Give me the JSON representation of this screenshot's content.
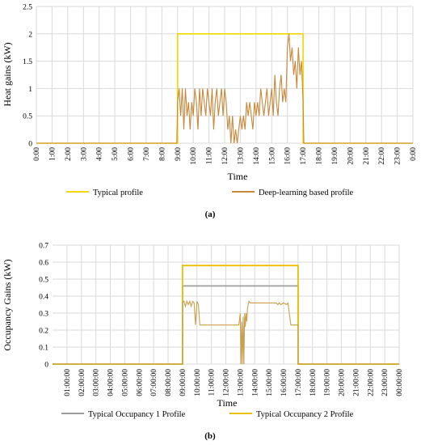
{
  "chart_data": [
    {
      "type": "line",
      "panel_label": "(a)",
      "xlabel": "Time",
      "ylabel": "Heat gains (kW)",
      "ylim": [
        0,
        2.5
      ],
      "yticks": [
        "0",
        "0.5",
        "1",
        "1.5",
        "2",
        "2.5"
      ],
      "xticks": [
        "0:00",
        "1:00",
        "2:00",
        "3:00",
        "4:00",
        "5:00",
        "6:00",
        "7:00",
        "8:00",
        "9:00",
        "10:00",
        "11:00",
        "12:00",
        "13:00",
        "14:00",
        "15:00",
        "16:00",
        "17:00",
        "18:00",
        "19:00",
        "20:00",
        "21:00",
        "22:00",
        "23:00",
        "0:00"
      ],
      "grid": true,
      "legend_position": "bottom",
      "series": [
        {
          "name": "Typical profile",
          "color": "#f2d600",
          "x": [
            0,
            9,
            9,
            17,
            17,
            24
          ],
          "y": [
            0,
            0,
            2,
            2,
            0,
            0
          ]
        },
        {
          "name": "Deep-learning based profile",
          "color": "#c8873a",
          "x": [
            0,
            8.95,
            9.0,
            9.1,
            9.2,
            9.3,
            9.4,
            9.5,
            9.6,
            9.7,
            9.8,
            9.9,
            10.0,
            10.1,
            10.2,
            10.3,
            10.4,
            10.5,
            10.6,
            10.7,
            10.8,
            10.9,
            11.0,
            11.1,
            11.2,
            11.3,
            11.4,
            11.5,
            11.6,
            11.7,
            11.8,
            11.9,
            12.0,
            12.1,
            12.2,
            12.3,
            12.4,
            12.5,
            12.6,
            12.7,
            12.8,
            12.9,
            13.0,
            13.1,
            13.2,
            13.3,
            13.4,
            13.5,
            13.6,
            13.7,
            13.8,
            13.9,
            14.0,
            14.1,
            14.2,
            14.3,
            14.4,
            14.5,
            14.6,
            14.7,
            14.8,
            14.9,
            15.0,
            15.1,
            15.2,
            15.3,
            15.4,
            15.5,
            15.6,
            15.7,
            15.8,
            15.9,
            16.0,
            16.1,
            16.2,
            16.3,
            16.4,
            16.5,
            16.6,
            16.7,
            16.8,
            16.9,
            17.0,
            17.05,
            24
          ],
          "y": [
            0,
            0,
            0.75,
            1.0,
            0.5,
            1.0,
            0.25,
            1.0,
            0.5,
            0.75,
            0.25,
            0.75,
            0.5,
            1.0,
            0.75,
            0.25,
            1.0,
            0.5,
            1.0,
            0.75,
            0.5,
            1.0,
            0.75,
            0.5,
            1.0,
            0.25,
            0.75,
            1.0,
            0.5,
            0.75,
            1.0,
            0.5,
            1.0,
            0.75,
            0.25,
            0.5,
            0,
            0.5,
            0,
            0.25,
            0,
            0.25,
            0.5,
            0.25,
            0.5,
            0.25,
            0.75,
            0.5,
            0.75,
            0.5,
            0.25,
            0.75,
            0.5,
            0.75,
            0.5,
            1.0,
            0.75,
            0.5,
            0.75,
            1.0,
            0.5,
            0.75,
            1.0,
            0.5,
            1.25,
            0.75,
            0.5,
            1.0,
            1.25,
            0.75,
            1.0,
            0.75,
            1.75,
            2.0,
            1.5,
            1.75,
            1.25,
            1.5,
            1.0,
            1.75,
            1.25,
            1.5,
            0.75,
            0,
            0
          ]
        }
      ]
    },
    {
      "type": "line",
      "panel_label": "(b)",
      "xlabel": "Time",
      "ylabel": "Occupancy Gains (kW)",
      "ylim": [
        0,
        0.7
      ],
      "yticks": [
        "0",
        "0.1",
        "0.2",
        "0.3",
        "0.4",
        "0.5",
        "0.6",
        "0.7"
      ],
      "xticks": [
        "01:00:00",
        "02:00:00",
        "03:00:00",
        "04:00:00",
        "05:00:00",
        "06:00:00",
        "07:00:00",
        "08:00:00",
        "09:00:00",
        "10:00:00",
        "11:00:00",
        "12:00:00",
        "13:00:00",
        "14:00:00",
        "15:00:00",
        "16:00:00",
        "17:00:00",
        "18:00:00",
        "19:00:00",
        "20:00:00",
        "21:00:00",
        "22:00:00",
        "23:00:00",
        "00:00:00"
      ],
      "grid": true,
      "legend_position": "bottom",
      "series": [
        {
          "name": "Typical Occupancy 1 Profile",
          "color": "#9e9e9e",
          "x": [
            0,
            9,
            9,
            17,
            17,
            24
          ],
          "y": [
            0,
            0,
            0.46,
            0.46,
            0,
            0
          ]
        },
        {
          "name": "Typical Occupancy 2 Profile",
          "color": "#e8c000",
          "x": [
            0,
            9,
            9,
            17,
            17,
            24
          ],
          "y": [
            0,
            0,
            0.58,
            0.58,
            0,
            0
          ]
        },
        {
          "name": "",
          "color": "#c8a050",
          "x": [
            0,
            9,
            9.0,
            9.1,
            9.2,
            9.3,
            9.4,
            9.5,
            9.6,
            9.7,
            9.8,
            9.9,
            10.0,
            10.1,
            10.2,
            11.0,
            12.0,
            12.9,
            13.0,
            13.05,
            13.1,
            13.15,
            13.2,
            13.25,
            13.3,
            13.35,
            13.4,
            13.45,
            13.5,
            13.6,
            13.7,
            13.8,
            14.0,
            14.5,
            15.0,
            15.5,
            15.6,
            15.7,
            15.8,
            16.0,
            16.2,
            16.3,
            16.5,
            17.0,
            17.0,
            24
          ],
          "y": [
            0,
            0,
            0.36,
            0.37,
            0.34,
            0.37,
            0.35,
            0.37,
            0.34,
            0.37,
            0.36,
            0.23,
            0.37,
            0.35,
            0.23,
            0.23,
            0.23,
            0.23,
            0.3,
            0.0,
            0.25,
            0.0,
            0.28,
            0.0,
            0.3,
            0.22,
            0.3,
            0.25,
            0.33,
            0.37,
            0.36,
            0.36,
            0.36,
            0.36,
            0.36,
            0.36,
            0.35,
            0.36,
            0.35,
            0.36,
            0.35,
            0.36,
            0.23,
            0.23,
            0,
            0
          ]
        }
      ]
    }
  ]
}
